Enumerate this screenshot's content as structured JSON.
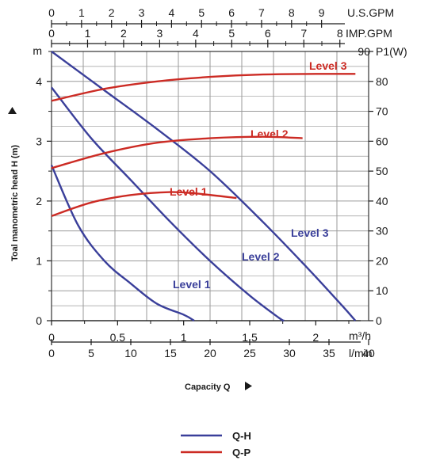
{
  "chart_data": {
    "type": "line",
    "top_axes": [
      {
        "unit": "U.S.GPM",
        "ticks": [
          "0",
          "1",
          "2",
          "3",
          "4",
          "5",
          "6",
          "7",
          "8",
          "9"
        ],
        "values": [
          0,
          1,
          2,
          3,
          4,
          5,
          6,
          7,
          8,
          9
        ]
      },
      {
        "unit": "IMP.GPM",
        "ticks": [
          "0",
          "1",
          "2",
          "3",
          "4",
          "5",
          "6",
          "7",
          "8"
        ],
        "values": [
          0,
          1,
          2,
          3,
          4,
          5,
          6,
          7,
          8
        ]
      }
    ],
    "x_axis": {
      "unit": "m³/h",
      "ticks": [
        "0",
        "0.5",
        "1",
        "1.5",
        "2"
      ],
      "values": [
        0,
        0.5,
        1,
        1.5,
        2
      ],
      "range": [
        0,
        2.4
      ]
    },
    "x2_axis": {
      "unit": "l/min",
      "ticks": [
        "0",
        "5",
        "10",
        "15",
        "20",
        "25",
        "30",
        "35",
        "40"
      ],
      "values": [
        0,
        5,
        10,
        15,
        20,
        25,
        30,
        35,
        40
      ]
    },
    "xlabel": "Capacity Q",
    "y_axis": {
      "unit": "m",
      "ticks": [
        "0",
        "1",
        "2",
        "3",
        "4"
      ],
      "values": [
        0,
        1,
        2,
        3,
        4
      ],
      "range": [
        0,
        4.5
      ]
    },
    "ylabel": "Toal manometric head H (m)",
    "y2_axis": {
      "unit": "P1(W)",
      "ticks": [
        "0",
        "10",
        "20",
        "30",
        "40",
        "50",
        "60",
        "70",
        "80",
        "90"
      ],
      "values": [
        0,
        10,
        20,
        30,
        40,
        50,
        60,
        70,
        80,
        90
      ],
      "range": [
        0,
        90
      ]
    },
    "grid": true,
    "series_qh": [
      {
        "name": "Level 1",
        "label": "Level 1",
        "points": [
          [
            0,
            2.6
          ],
          [
            0.2,
            1.6
          ],
          [
            0.4,
            1.0
          ],
          [
            0.6,
            0.62
          ],
          [
            0.8,
            0.28
          ],
          [
            1.0,
            0.1
          ],
          [
            1.08,
            0
          ]
        ]
      },
      {
        "name": "Level 2",
        "label": "Level 2",
        "points": [
          [
            0,
            3.9
          ],
          [
            0.3,
            3.05
          ],
          [
            0.6,
            2.35
          ],
          [
            0.9,
            1.65
          ],
          [
            1.2,
            1.0
          ],
          [
            1.5,
            0.42
          ],
          [
            1.72,
            0.05
          ],
          [
            1.76,
            0
          ]
        ]
      },
      {
        "name": "Level 3",
        "label": "Level 3",
        "points": [
          [
            0,
            4.5
          ],
          [
            0.4,
            3.85
          ],
          [
            0.8,
            3.2
          ],
          [
            1.2,
            2.5
          ],
          [
            1.6,
            1.65
          ],
          [
            1.95,
            0.85
          ],
          [
            2.2,
            0.25
          ],
          [
            2.3,
            0
          ]
        ]
      }
    ],
    "series_qp": [
      {
        "name": "Level 1",
        "label": "Level 1",
        "points": [
          [
            0,
            35
          ],
          [
            0.3,
            39.5
          ],
          [
            0.6,
            42
          ],
          [
            0.9,
            43
          ],
          [
            1.1,
            42.5
          ],
          [
            1.4,
            41
          ]
        ]
      },
      {
        "name": "Level 2",
        "label": "Level 2",
        "points": [
          [
            0,
            51
          ],
          [
            0.4,
            56
          ],
          [
            0.8,
            59.5
          ],
          [
            1.2,
            61
          ],
          [
            1.6,
            61.5
          ],
          [
            1.9,
            61
          ]
        ]
      },
      {
        "name": "Level 3",
        "label": "Level 3",
        "points": [
          [
            0,
            73.5
          ],
          [
            0.4,
            77.5
          ],
          [
            0.8,
            80
          ],
          [
            1.2,
            81.5
          ],
          [
            1.6,
            82.3
          ],
          [
            2.0,
            82.5
          ],
          [
            2.3,
            82.5
          ]
        ]
      }
    ],
    "legend": [
      {
        "label": "Q-H",
        "color": "#3a3f9a"
      },
      {
        "label": "Q-P",
        "color": "#cc2b24"
      }
    ],
    "colors": {
      "qh": "#3a3f9a",
      "qp": "#cc2b24",
      "label_qh": "#3a3f9a",
      "label_qp": "#cc2b24"
    }
  }
}
